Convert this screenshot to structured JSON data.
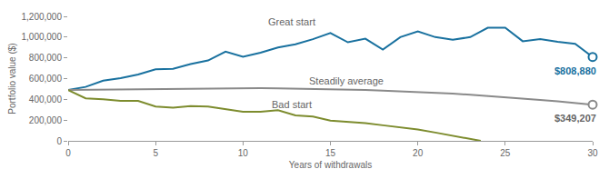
{
  "chart_data": {
    "type": "line",
    "x_label": "Years of withdrawals",
    "y_label": "Portfolio value ($)",
    "x": [
      0,
      1,
      2,
      3,
      4,
      5,
      6,
      7,
      8,
      9,
      10,
      11,
      12,
      13,
      14,
      15,
      16,
      17,
      18,
      19,
      20,
      21,
      22,
      23,
      24,
      25,
      26,
      27,
      28,
      29,
      30
    ],
    "series": [
      {
        "name": "Great start",
        "color": "#19719f",
        "marker": "end_circle",
        "values": [
          490000,
          520000,
          580000,
          605000,
          640000,
          690000,
          695000,
          740000,
          775000,
          860000,
          810000,
          850000,
          900000,
          930000,
          980000,
          1040000,
          950000,
          985000,
          880000,
          1000000,
          1055000,
          1000000,
          975000,
          1000000,
          1090000,
          1090000,
          960000,
          980000,
          955000,
          935000,
          808880
        ]
      },
      {
        "name": "Steadily average",
        "color": "#8a8a8a",
        "marker": "end_circle",
        "values": [
          490000,
          492000,
          495000,
          497000,
          499000,
          501000,
          503000,
          505000,
          506000,
          507000,
          507000,
          507000,
          506000,
          504000,
          502000,
          499000,
          495000,
          490000,
          485000,
          479000,
          472000,
          464000,
          455000,
          445000,
          434000,
          422000,
          409000,
          395000,
          381000,
          365000,
          349207
        ]
      },
      {
        "name": "Bad start",
        "color": "#7d8c2e",
        "marker": "none",
        "x": [
          0,
          1,
          2,
          3,
          4,
          5,
          6,
          7,
          8,
          9,
          10,
          11,
          12,
          13,
          14,
          15,
          16,
          17,
          18,
          19,
          20,
          21,
          22,
          23,
          23.6
        ],
        "values": [
          490000,
          410000,
          400000,
          385000,
          385000,
          330000,
          320000,
          335000,
          330000,
          305000,
          280000,
          280000,
          295000,
          245000,
          235000,
          195000,
          185000,
          170000,
          150000,
          130000,
          110000,
          80000,
          50000,
          20000,
          0
        ]
      }
    ],
    "annotations": [
      {
        "text": "Great start",
        "x": 12.8,
        "y": 1150000,
        "color": "#666666"
      },
      {
        "text": "Steadily average",
        "x": 15.9,
        "y": 580000,
        "color": "#666666"
      },
      {
        "text": "Bad start",
        "x": 12.8,
        "y": 350000,
        "color": "#666666"
      },
      {
        "text": "$808,880",
        "x": 30,
        "y": 808880,
        "color": "#19719f"
      },
      {
        "text": "$349,207",
        "x": 30,
        "y": 349207,
        "color": "#666666"
      }
    ],
    "xlim": [
      0,
      30
    ],
    "xticks": [
      0,
      5,
      10,
      15,
      20,
      25,
      30
    ],
    "ylim": [
      0,
      1200000
    ],
    "yticks": [
      0,
      {
        "value": 200000,
        "label": "200,000"
      },
      {
        "value": 400000,
        "label": "400,000"
      },
      {
        "value": 600000,
        "label": "600,000"
      },
      {
        "value": 800000,
        "label": "800,000"
      },
      {
        "value": 1000000,
        "label": "1,000,000"
      },
      {
        "value": 1200000,
        "label": "1,200,000"
      }
    ],
    "grid": false
  }
}
